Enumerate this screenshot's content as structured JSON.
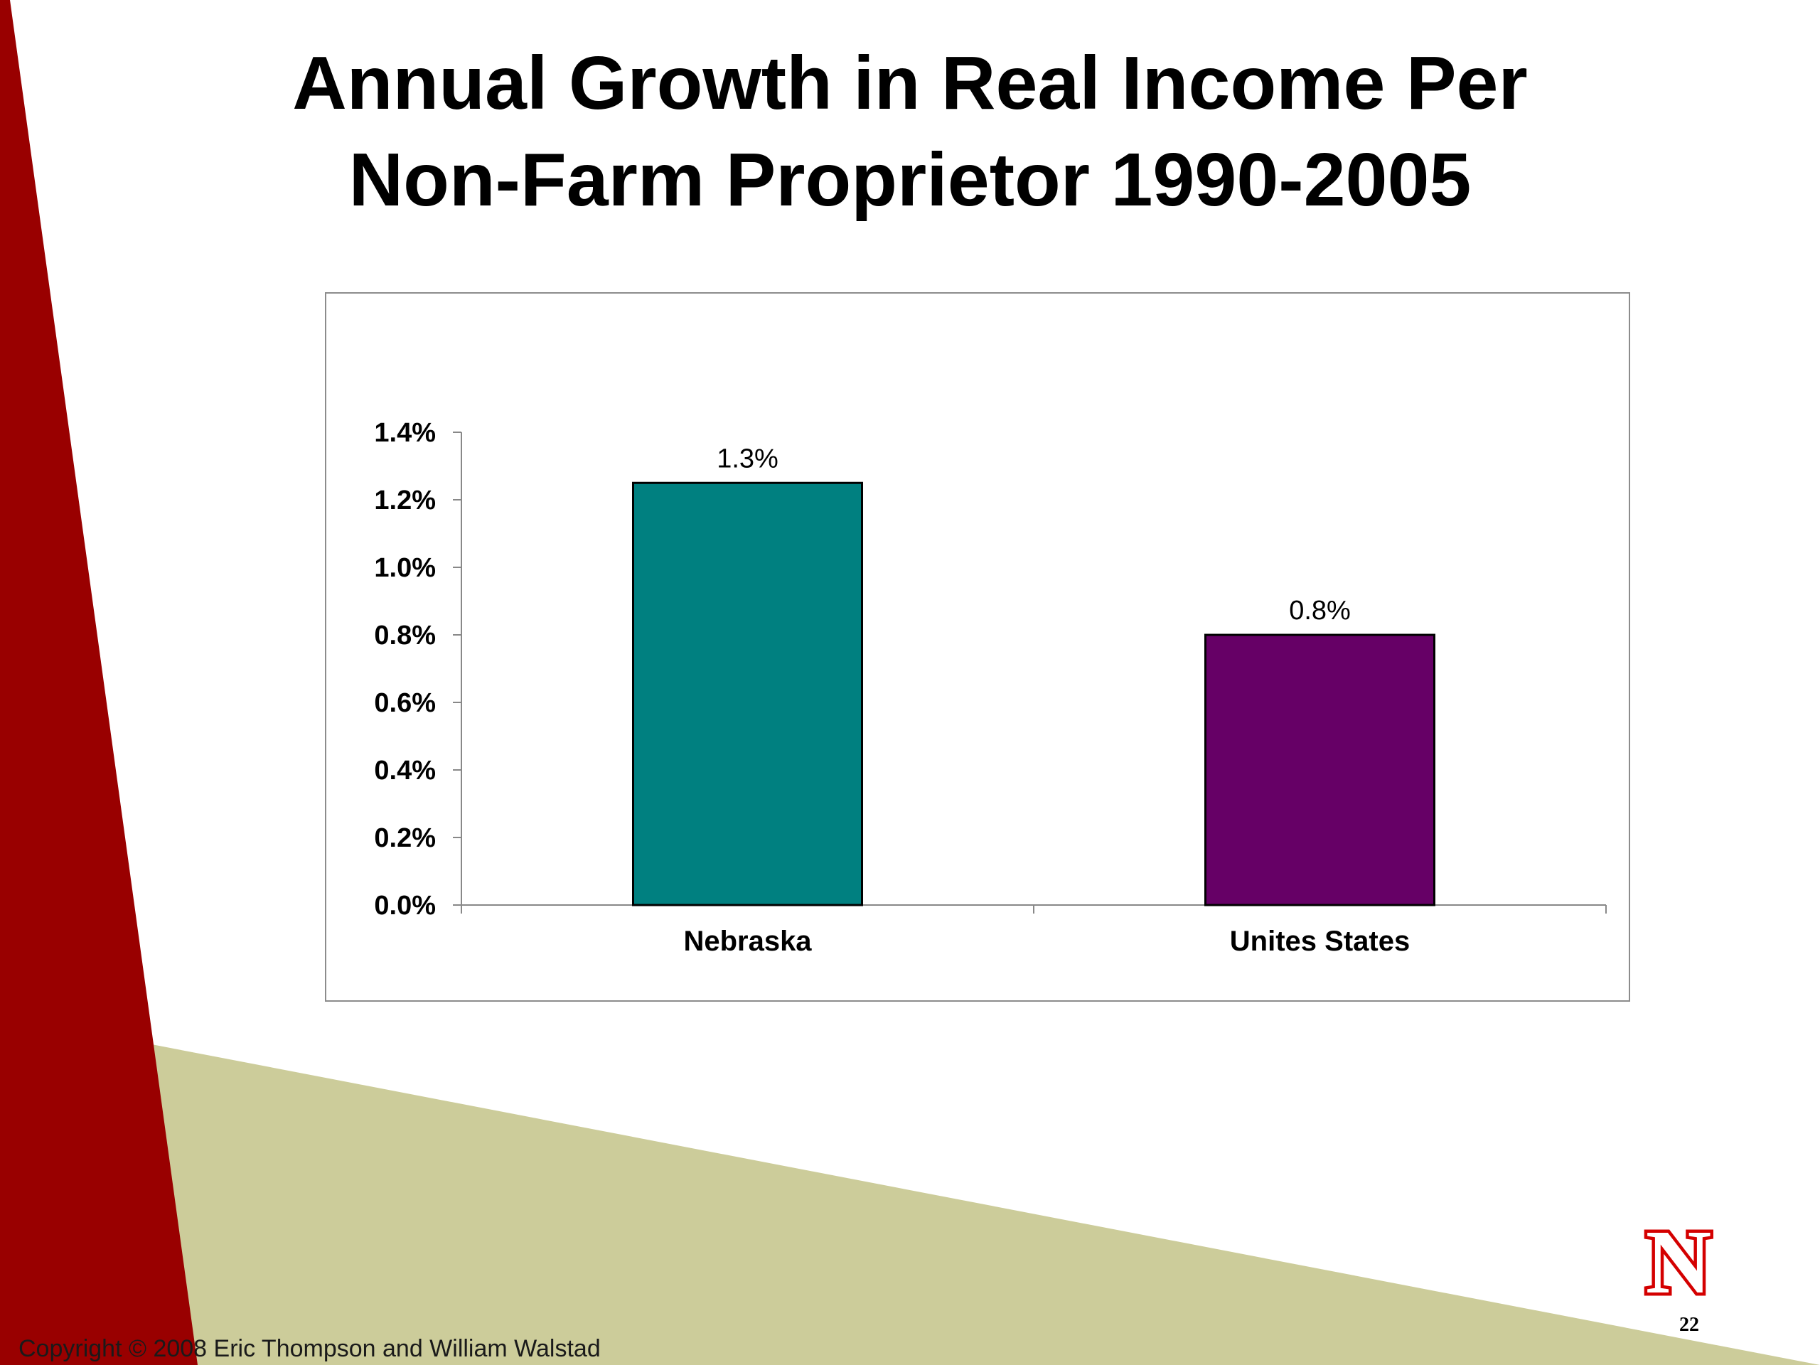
{
  "slide": {
    "title_line1": "Annual Growth in Real Income Per",
    "title_line2": "Non-Farm Proprietor 1990-2005",
    "copyright": "Copyright © 2008 Eric Thompson and William Walstad",
    "slide_number": "22",
    "logo_letter": "N"
  },
  "colors": {
    "red_band": "#990000",
    "khaki_band": "#cccc9a",
    "logo_red": "#d40000"
  },
  "chart_data": {
    "type": "bar",
    "categories": [
      "Nebraska",
      "Unites States"
    ],
    "values": [
      1.25,
      0.8
    ],
    "data_labels": [
      "1.3%",
      "0.8%"
    ],
    "colors": [
      "#008080",
      "#660066"
    ],
    "y_ticks": [
      "0.0%",
      "0.2%",
      "0.4%",
      "0.6%",
      "0.8%",
      "1.0%",
      "1.2%",
      "1.4%"
    ],
    "ylim": [
      0,
      1.4
    ],
    "y_step": 0.2,
    "grid": false,
    "legend": "none"
  }
}
